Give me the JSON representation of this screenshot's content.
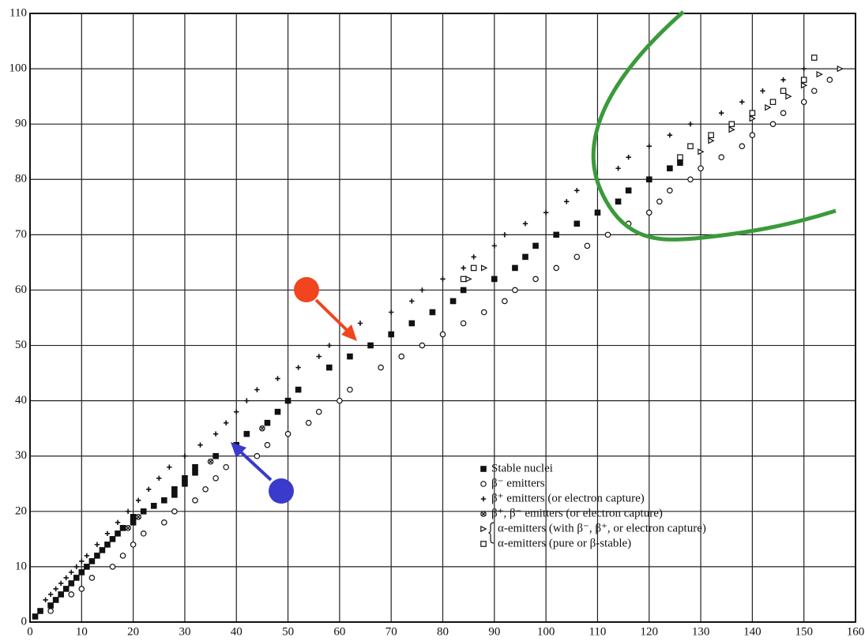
{
  "chart_data": {
    "type": "scatter",
    "xlim": [
      0,
      160
    ],
    "ylim": [
      0,
      110
    ],
    "xticks": [
      0,
      10,
      20,
      30,
      40,
      50,
      60,
      70,
      80,
      90,
      100,
      110,
      120,
      130,
      140,
      150,
      160
    ],
    "yticks": [
      0,
      10,
      20,
      30,
      40,
      50,
      60,
      70,
      80,
      90,
      100,
      110
    ],
    "grid": true,
    "legend": "lower right",
    "series": [
      {
        "name": "Stable nuclei",
        "marker": "filled-square",
        "color": "#111111",
        "x": [
          1,
          2,
          4,
          5,
          6,
          7,
          8,
          9,
          10,
          11,
          12,
          13,
          14,
          15,
          16,
          17,
          18,
          20,
          20,
          22,
          24,
          26,
          28,
          28,
          30,
          30,
          32,
          32,
          36,
          40,
          42,
          46,
          48,
          50,
          52,
          58,
          62,
          66,
          70,
          74,
          78,
          82,
          84,
          90,
          94,
          96,
          98,
          102,
          106,
          110,
          114,
          116,
          120,
          124,
          126
        ],
        "values": [
          1,
          2,
          3,
          4,
          5,
          6,
          7,
          8,
          9,
          10,
          11,
          12,
          13,
          14,
          15,
          16,
          17,
          18,
          19,
          20,
          21,
          22,
          23,
          24,
          25,
          26,
          27,
          28,
          30,
          32,
          34,
          36,
          38,
          40,
          42,
          46,
          48,
          50,
          52,
          54,
          56,
          58,
          60,
          62,
          64,
          66,
          68,
          70,
          72,
          74,
          76,
          78,
          80,
          82,
          83
        ]
      },
      {
        "name": "β⁻ emitters",
        "marker": "circle",
        "color": "#111111",
        "x": [
          4,
          8,
          10,
          12,
          16,
          18,
          20,
          22,
          26,
          28,
          32,
          34,
          36,
          38,
          44,
          46,
          50,
          54,
          56,
          60,
          62,
          68,
          72,
          76,
          80,
          84,
          88,
          92,
          94,
          98,
          102,
          106,
          108,
          112,
          116,
          120,
          122,
          124,
          128,
          130,
          134,
          138,
          140,
          144,
          146,
          150,
          152,
          155
        ],
        "values": [
          2,
          5,
          6,
          8,
          10,
          12,
          14,
          16,
          18,
          20,
          22,
          24,
          26,
          28,
          30,
          32,
          34,
          36,
          38,
          40,
          42,
          46,
          48,
          50,
          52,
          54,
          56,
          58,
          60,
          62,
          64,
          66,
          68,
          70,
          72,
          74,
          76,
          78,
          80,
          82,
          84,
          86,
          88,
          90,
          92,
          94,
          96,
          98
        ]
      },
      {
        "name": "β⁺ emitters (or electron capture)",
        "marker": "plus",
        "color": "#111111",
        "x": [
          3,
          4,
          5,
          6,
          7,
          8,
          9,
          10,
          11,
          13,
          15,
          17,
          19,
          21,
          23,
          25,
          27,
          30,
          33,
          36,
          38,
          40,
          42,
          44,
          48,
          52,
          56,
          58,
          62,
          64,
          70,
          74,
          76,
          80,
          84,
          86,
          90,
          92,
          96,
          100,
          104,
          106,
          110,
          114,
          116,
          120,
          124,
          128,
          134,
          138,
          142,
          146,
          150
        ],
        "values": [
          4,
          5,
          6,
          7,
          8,
          9,
          10,
          11,
          12,
          14,
          16,
          18,
          20,
          22,
          24,
          26,
          28,
          30,
          32,
          34,
          36,
          38,
          40,
          42,
          44,
          46,
          48,
          50,
          52,
          54,
          56,
          58,
          60,
          62,
          64,
          66,
          68,
          70,
          72,
          74,
          76,
          78,
          80,
          82,
          84,
          86,
          88,
          90,
          92,
          94,
          96,
          98,
          100
        ]
      },
      {
        "name": "β⁺, β⁻ emitters (or electron capture)",
        "marker": "circle-x",
        "color": "#111111",
        "x": [
          19,
          21,
          35,
          45
        ],
        "values": [
          17,
          19,
          29,
          35
        ]
      },
      {
        "name": "α-emitters (with β⁻, β⁺, or electron capture)",
        "marker": "triangle",
        "color": "#111111",
        "x": [
          85,
          88,
          130,
          132,
          136,
          140,
          143,
          147,
          150,
          153,
          157
        ],
        "values": [
          62,
          64,
          85,
          87,
          89,
          91,
          93,
          95,
          97,
          99,
          100
        ]
      },
      {
        "name": "α-emitters (pure or β-stable)",
        "marker": "square",
        "color": "#111111",
        "x": [
          84,
          86,
          126,
          128,
          132,
          136,
          140,
          144,
          146,
          150,
          152
        ],
        "values": [
          62,
          64,
          84,
          86,
          88,
          90,
          92,
          94,
          96,
          98,
          102
        ]
      }
    ]
  }
}
